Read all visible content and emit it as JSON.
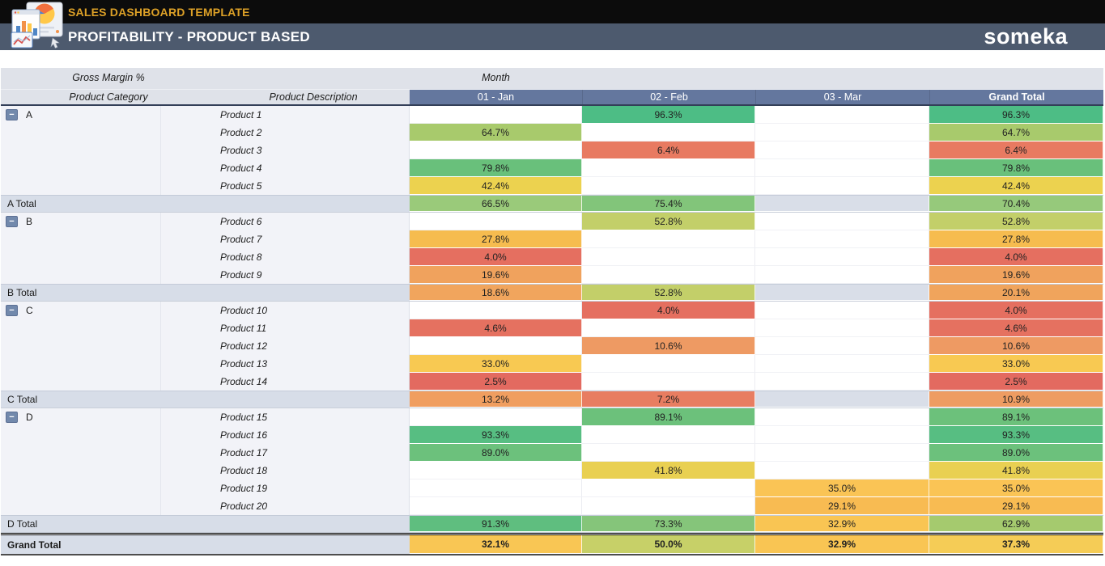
{
  "header": {
    "app_title": "SALES DASHBOARD TEMPLATE",
    "page_title": "PROFITABILITY - PRODUCT BASED",
    "brand": "someka",
    "title_color": "#DDA127",
    "bar_color": "#4D5A6E"
  },
  "table": {
    "measure_label": "Gross Margin %",
    "month_label": "Month",
    "category_header": "Product Category",
    "description_header": "Product Description",
    "column_headers": [
      "01 - Jan",
      "02 - Feb",
      "03 - Mar",
      "Grand Total"
    ],
    "columns_key": [
      "jan",
      "feb",
      "mar",
      "grand-total"
    ],
    "header_bg": "#64779E",
    "subtotal_bg": "#D7DDE8",
    "row_bg": "#F2F3F8",
    "rows": [
      {
        "type": "product",
        "category": "A",
        "label": "Product 1",
        "cells": [
          null,
          {
            "v": "96.3%",
            "c": "#4dbd85"
          },
          null,
          {
            "v": "96.3%",
            "c": "#4dbd85"
          }
        ]
      },
      {
        "type": "product",
        "label": "Product 2",
        "cells": [
          {
            "v": "64.7%",
            "c": "#a8ca6c"
          },
          null,
          null,
          {
            "v": "64.7%",
            "c": "#a8ca6c"
          }
        ]
      },
      {
        "type": "product",
        "label": "Product 3",
        "cells": [
          null,
          {
            "v": "6.4%",
            "c": "#e87a61"
          },
          null,
          {
            "v": "6.4%",
            "c": "#e87a61"
          }
        ]
      },
      {
        "type": "product",
        "label": "Product 4",
        "cells": [
          {
            "v": "79.8%",
            "c": "#69c07b"
          },
          null,
          null,
          {
            "v": "79.8%",
            "c": "#69c07b"
          }
        ]
      },
      {
        "type": "product",
        "label": "Product 5",
        "cells": [
          {
            "v": "42.4%",
            "c": "#ecd24f"
          },
          null,
          null,
          {
            "v": "42.4%",
            "c": "#ecd24f"
          }
        ]
      },
      {
        "type": "subtotal",
        "label": "A Total",
        "cells": [
          {
            "v": "66.5%",
            "c": "#9aca7a"
          },
          {
            "v": "75.4%",
            "c": "#82c57a"
          },
          null,
          {
            "v": "70.4%",
            "c": "#96c97b"
          }
        ]
      },
      {
        "type": "product",
        "category": "B",
        "label": "Product 6",
        "cells": [
          null,
          {
            "v": "52.8%",
            "c": "#c3cf69"
          },
          null,
          {
            "v": "52.8%",
            "c": "#c3cf69"
          }
        ]
      },
      {
        "type": "product",
        "label": "Product 7",
        "cells": [
          {
            "v": "27.8%",
            "c": "#f6bc4f"
          },
          null,
          null,
          {
            "v": "27.8%",
            "c": "#f6bc4f"
          }
        ]
      },
      {
        "type": "product",
        "label": "Product 8",
        "cells": [
          {
            "v": "4.0%",
            "c": "#e56f60"
          },
          null,
          null,
          {
            "v": "4.0%",
            "c": "#e56f60"
          }
        ]
      },
      {
        "type": "product",
        "label": "Product 9",
        "cells": [
          {
            "v": "19.6%",
            "c": "#f0a25d"
          },
          null,
          null,
          {
            "v": "19.6%",
            "c": "#f0a25d"
          }
        ]
      },
      {
        "type": "subtotal",
        "label": "B Total",
        "cells": [
          {
            "v": "18.6%",
            "c": "#f1a55d"
          },
          {
            "v": "52.8%",
            "c": "#c3cf69"
          },
          null,
          {
            "v": "20.1%",
            "c": "#f0a45c"
          }
        ]
      },
      {
        "type": "product",
        "category": "C",
        "label": "Product 10",
        "cells": [
          null,
          {
            "v": "4.0%",
            "c": "#e56f60"
          },
          null,
          {
            "v": "4.0%",
            "c": "#e56f60"
          }
        ]
      },
      {
        "type": "product",
        "label": "Product 11",
        "cells": [
          {
            "v": "4.6%",
            "c": "#e57160"
          },
          null,
          null,
          {
            "v": "4.6%",
            "c": "#e57160"
          }
        ]
      },
      {
        "type": "product",
        "label": "Product 12",
        "cells": [
          null,
          {
            "v": "10.6%",
            "c": "#ee9a63"
          },
          null,
          {
            "v": "10.6%",
            "c": "#ee9a63"
          }
        ]
      },
      {
        "type": "product",
        "label": "Product 13",
        "cells": [
          {
            "v": "33.0%",
            "c": "#f8c952"
          },
          null,
          null,
          {
            "v": "33.0%",
            "c": "#f8c952"
          }
        ]
      },
      {
        "type": "product",
        "label": "Product 14",
        "cells": [
          {
            "v": "2.5%",
            "c": "#e36a60"
          },
          null,
          null,
          {
            "v": "2.5%",
            "c": "#e36a60"
          }
        ]
      },
      {
        "type": "subtotal",
        "label": "C Total",
        "cells": [
          {
            "v": "13.2%",
            "c": "#f09e60"
          },
          {
            "v": "7.2%",
            "c": "#e87d61"
          },
          null,
          {
            "v": "10.9%",
            "c": "#ee9c62"
          }
        ]
      },
      {
        "type": "product",
        "category": "D",
        "label": "Product 15",
        "cells": [
          null,
          {
            "v": "89.1%",
            "c": "#6cc17b"
          },
          null,
          {
            "v": "89.1%",
            "c": "#6cc17b"
          }
        ]
      },
      {
        "type": "product",
        "label": "Product 16",
        "cells": [
          {
            "v": "93.3%",
            "c": "#57be82"
          },
          null,
          null,
          {
            "v": "93.3%",
            "c": "#57be82"
          }
        ]
      },
      {
        "type": "product",
        "label": "Product 17",
        "cells": [
          {
            "v": "89.0%",
            "c": "#6cc17c"
          },
          null,
          null,
          {
            "v": "89.0%",
            "c": "#6cc17c"
          }
        ]
      },
      {
        "type": "product",
        "label": "Product 18",
        "cells": [
          null,
          {
            "v": "41.8%",
            "c": "#e9d052"
          },
          null,
          {
            "v": "41.8%",
            "c": "#e9d052"
          }
        ]
      },
      {
        "type": "product",
        "label": "Product 19",
        "cells": [
          null,
          null,
          {
            "v": "35.0%",
            "c": "#fac455"
          },
          {
            "v": "35.0%",
            "c": "#fac455"
          }
        ]
      },
      {
        "type": "product",
        "label": "Product 20",
        "cells": [
          null,
          null,
          {
            "v": "29.1%",
            "c": "#f8bb52"
          },
          {
            "v": "29.1%",
            "c": "#f8bb52"
          }
        ]
      },
      {
        "type": "subtotal",
        "label": "D Total",
        "cells": [
          {
            "v": "91.3%",
            "c": "#5fbe7f"
          },
          {
            "v": "73.3%",
            "c": "#85c57a"
          },
          {
            "v": "32.9%",
            "c": "#f9c553"
          },
          {
            "v": "62.9%",
            "c": "#a5ca6e"
          }
        ]
      },
      {
        "type": "grandtotal",
        "label": "Grand Total",
        "cells": [
          {
            "v": "32.1%",
            "c": "#f9c654"
          },
          {
            "v": "50.0%",
            "c": "#c7d068"
          },
          {
            "v": "32.9%",
            "c": "#f9c553"
          },
          {
            "v": "37.3%",
            "c": "#f5cc56"
          }
        ]
      }
    ]
  }
}
